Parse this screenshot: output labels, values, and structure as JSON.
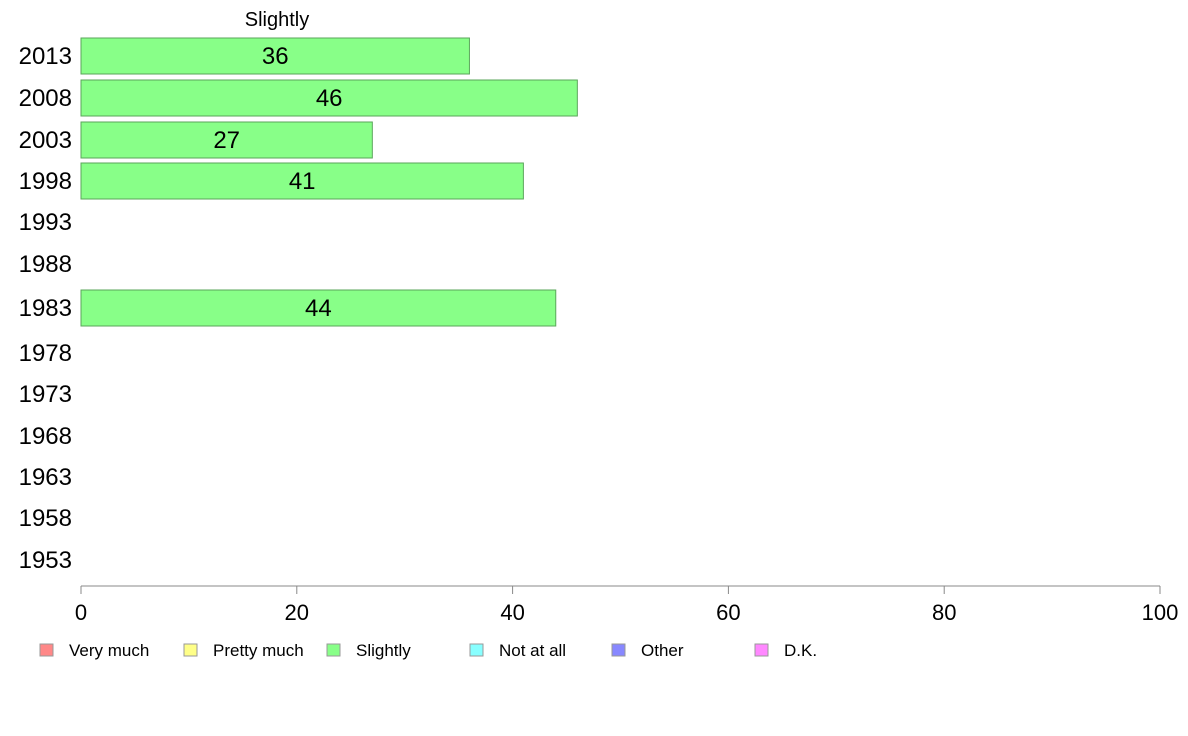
{
  "chart_data": {
    "type": "bar",
    "orientation": "horizontal",
    "title": "Slightly",
    "categories": [
      "2013",
      "2008",
      "2003",
      "1998",
      "1993",
      "1988",
      "1983",
      "1978",
      "1973",
      "1968",
      "1963",
      "1958",
      "1953"
    ],
    "series": [
      {
        "name": "Slightly",
        "color": "#88ff88",
        "values": [
          36,
          46,
          27,
          41,
          null,
          null,
          44,
          null,
          null,
          null,
          null,
          null,
          null
        ]
      }
    ],
    "xlim": [
      0,
      100
    ],
    "xticks": [
      0,
      20,
      40,
      60,
      80,
      100
    ],
    "grid": false,
    "legend_position": "bottom",
    "legend": [
      {
        "label": "Very much",
        "color": "#ff8888"
      },
      {
        "label": "Pretty much",
        "color": "#ffff88"
      },
      {
        "label": "Slightly",
        "color": "#88ff88"
      },
      {
        "label": "Not at all",
        "color": "#88ffff"
      },
      {
        "label": "Other",
        "color": "#8888ff"
      },
      {
        "label": "D.K.",
        "color": "#ff88ff"
      }
    ]
  }
}
